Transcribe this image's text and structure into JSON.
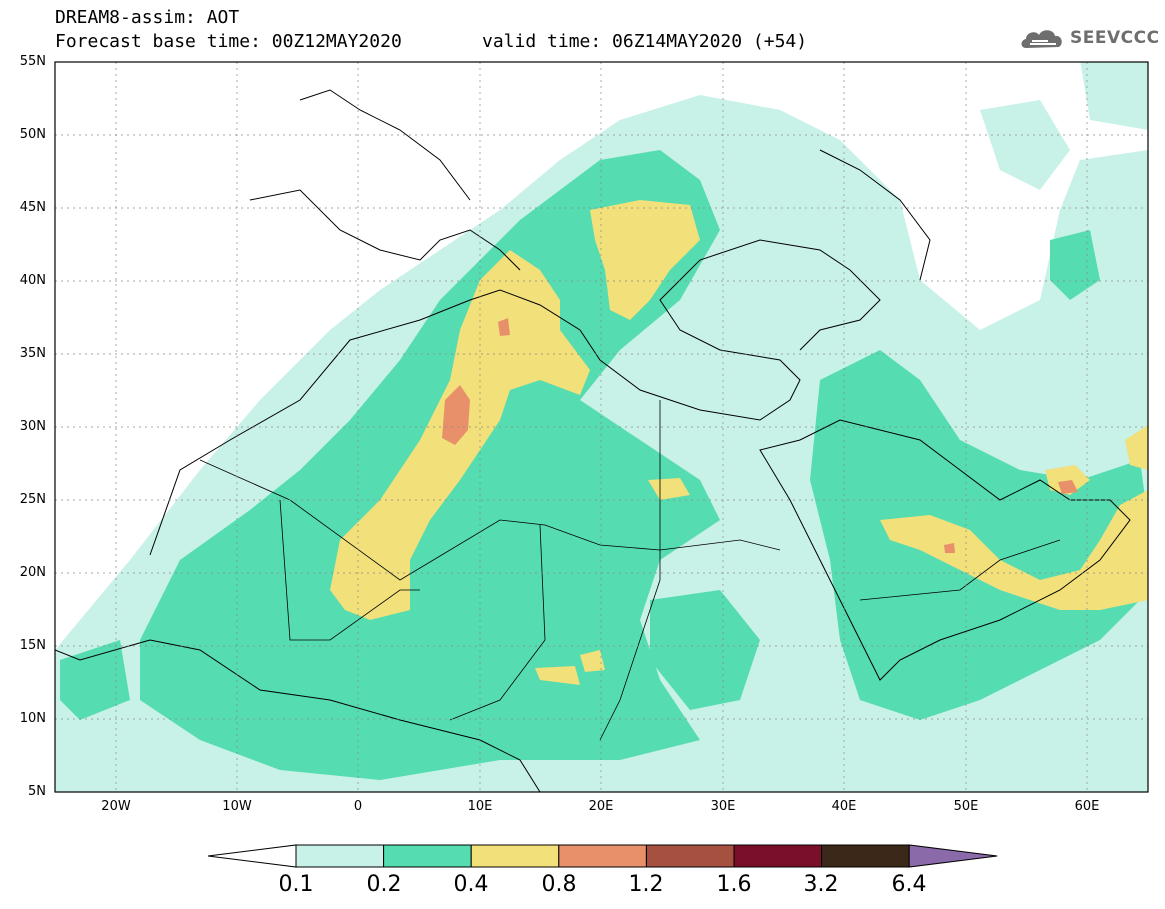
{
  "header": {
    "line1": "DREAM8-assim: AOT",
    "line2_left": "Forecast base time: 00Z12MAY2020",
    "line2_right": "valid time: 06Z14MAY2020 (+54)",
    "logo_text": "SEEVCCC"
  },
  "map": {
    "extent": {
      "lon_min": -25,
      "lon_max": 65,
      "lat_min": 5,
      "lat_max": 55
    },
    "lat_labels": [
      "55N",
      "50N",
      "45N",
      "40N",
      "35N",
      "30N",
      "25N",
      "20N",
      "15N",
      "10N",
      "5N"
    ],
    "lon_labels": [
      "20W",
      "10W",
      "0",
      "10E",
      "20E",
      "30E",
      "40E",
      "50E",
      "60E"
    ],
    "field": "Aerosol optical thickness"
  },
  "colorbar": {
    "thresholds": [
      "0.1",
      "0.2",
      "0.4",
      "0.8",
      "1.2",
      "1.6",
      "3.2",
      "6.4"
    ],
    "colors": [
      "#c8f1e8",
      "#55dcb0",
      "#f2e07a",
      "#e8906a",
      "#a65040",
      "#7a0f2a",
      "#3b2818",
      "#8a6aa8"
    ],
    "below_color": "#ffffff"
  }
}
